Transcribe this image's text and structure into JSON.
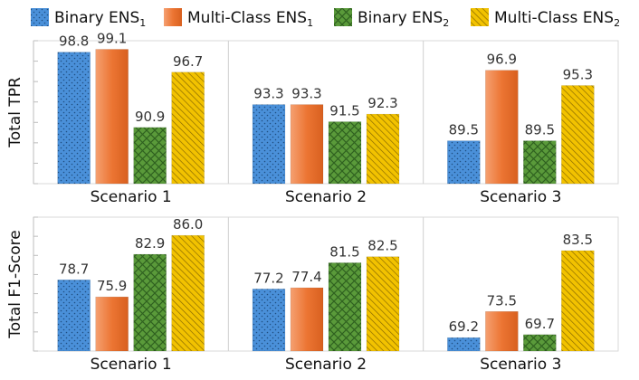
{
  "chart_data": {
    "type": "bar",
    "legend": [
      {
        "name": "Binary ENS",
        "sub": "1",
        "color": "#4a90d9",
        "pattern": "dots"
      },
      {
        "name": "Multi-Class ENS",
        "sub": "1",
        "color": "#ec7533",
        "pattern": "gradient"
      },
      {
        "name": "Binary ENS",
        "sub": "2",
        "color": "#5a9a3a",
        "pattern": "crosshatch"
      },
      {
        "name": "Multi-Class ENS",
        "sub": "2",
        "color": "#e5b800",
        "pattern": "diagonal"
      }
    ],
    "legend_position": "top",
    "categories": [
      "Scenario 1",
      "Scenario 2",
      "Scenario 3"
    ],
    "panels": [
      {
        "ylabel": "Total TPR",
        "ylim": [
          85,
          100
        ],
        "groups": [
          {
            "category": "Scenario 1",
            "values": [
              98.8,
              99.1,
              90.9,
              96.7
            ],
            "labels": [
              "98.8",
              "99.1",
              "90.9",
              "96.7"
            ]
          },
          {
            "category": "Scenario 2",
            "values": [
              93.3,
              93.3,
              91.5,
              92.3
            ],
            "labels": [
              "93.3",
              "93.3",
              "91.5",
              "92.3"
            ]
          },
          {
            "category": "Scenario 3",
            "values": [
              89.5,
              96.9,
              89.5,
              95.3
            ],
            "labels": [
              "89.5",
              "96.9",
              "89.5",
              "95.3"
            ]
          }
        ]
      },
      {
        "ylabel": "Total F1-Score",
        "ylim": [
          67,
          89
        ],
        "groups": [
          {
            "category": "Scenario 1",
            "values": [
              78.7,
              75.9,
              82.9,
              86.0
            ],
            "labels": [
              "78.7",
              "75.9",
              "82.9",
              "86.0"
            ]
          },
          {
            "category": "Scenario 2",
            "values": [
              77.2,
              77.4,
              81.5,
              82.5
            ],
            "labels": [
              "77.2",
              "77.4",
              "81.5",
              "82.5"
            ]
          },
          {
            "category": "Scenario 3",
            "values": [
              69.2,
              73.5,
              69.7,
              83.5
            ],
            "labels": [
              "69.2",
              "73.5",
              "69.7",
              "83.5"
            ]
          }
        ]
      }
    ]
  }
}
